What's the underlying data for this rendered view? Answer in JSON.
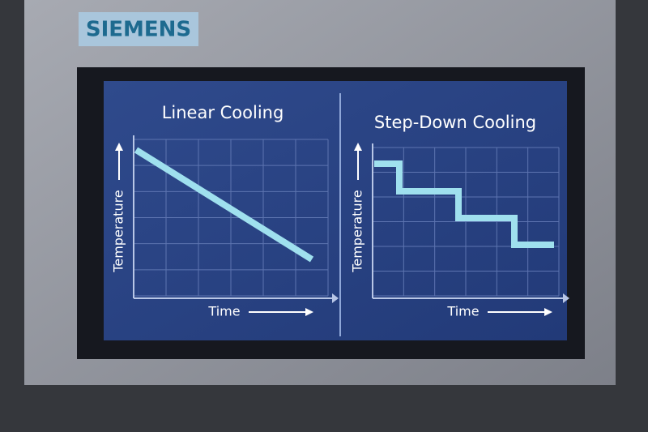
{
  "brand": "SIEMENS",
  "panels": [
    {
      "title": "Linear Cooling",
      "y_label": "Temperature",
      "x_label": "Time"
    },
    {
      "title": "Step-Down Cooling",
      "y_label": "Temperature",
      "x_label": "Time"
    }
  ]
}
